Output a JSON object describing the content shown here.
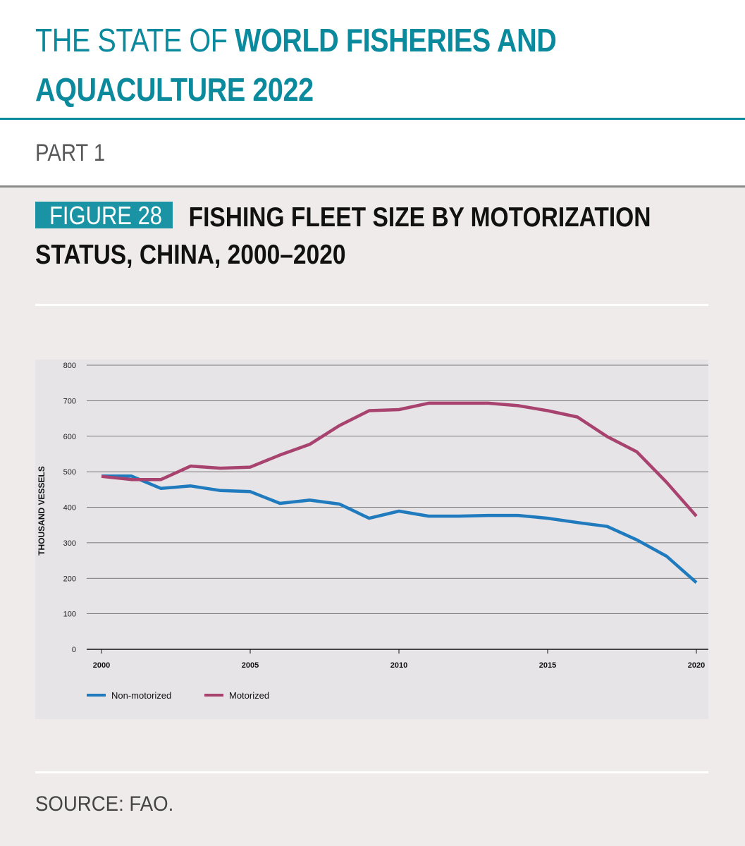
{
  "header": {
    "title_light": "THE STATE OF ",
    "title_bold_1": "WORLD FISHERIES AND",
    "title_bold_2": "AQUACULTURE 2022",
    "part": "PART 1"
  },
  "figure": {
    "badge": "FIGURE 28",
    "title": "FISHING FLEET SIZE BY MOTORIZATION STATUS, CHINA, 2000–2020"
  },
  "source": "SOURCE: FAO.",
  "colors": {
    "teal": "#0a8a9c",
    "non_motorized": "#1f7bbd",
    "motorized": "#a8426f"
  },
  "chart_data": {
    "type": "line",
    "title": "FISHING FLEET SIZE BY MOTORIZATION STATUS, CHINA, 2000–2020",
    "xlabel": "",
    "ylabel": "THOUSAND VESSELS",
    "x": [
      2000,
      2001,
      2002,
      2003,
      2004,
      2005,
      2006,
      2007,
      2008,
      2009,
      2010,
      2011,
      2012,
      2013,
      2014,
      2015,
      2016,
      2017,
      2018,
      2019,
      2020
    ],
    "xticks": [
      2000,
      2005,
      2010,
      2015,
      2020
    ],
    "xlim": [
      2000,
      2020
    ],
    "ylim": [
      0,
      800
    ],
    "yticks": [
      0,
      100,
      200,
      300,
      400,
      500,
      600,
      700,
      800
    ],
    "grid": true,
    "legend": "bottom-left",
    "series": [
      {
        "name": "Non-motorized",
        "color": "#1f7bbd",
        "values": [
          488,
          488,
          453,
          460,
          447,
          444,
          411,
          420,
          409,
          369,
          389,
          375,
          375,
          377,
          377,
          369,
          357,
          346,
          308,
          262,
          188
        ]
      },
      {
        "name": "Motorized",
        "color": "#a8426f",
        "values": [
          487,
          478,
          478,
          516,
          510,
          513,
          547,
          577,
          630,
          672,
          675,
          693,
          693,
          693,
          686,
          672,
          654,
          599,
          556,
          470,
          375
        ]
      }
    ]
  }
}
